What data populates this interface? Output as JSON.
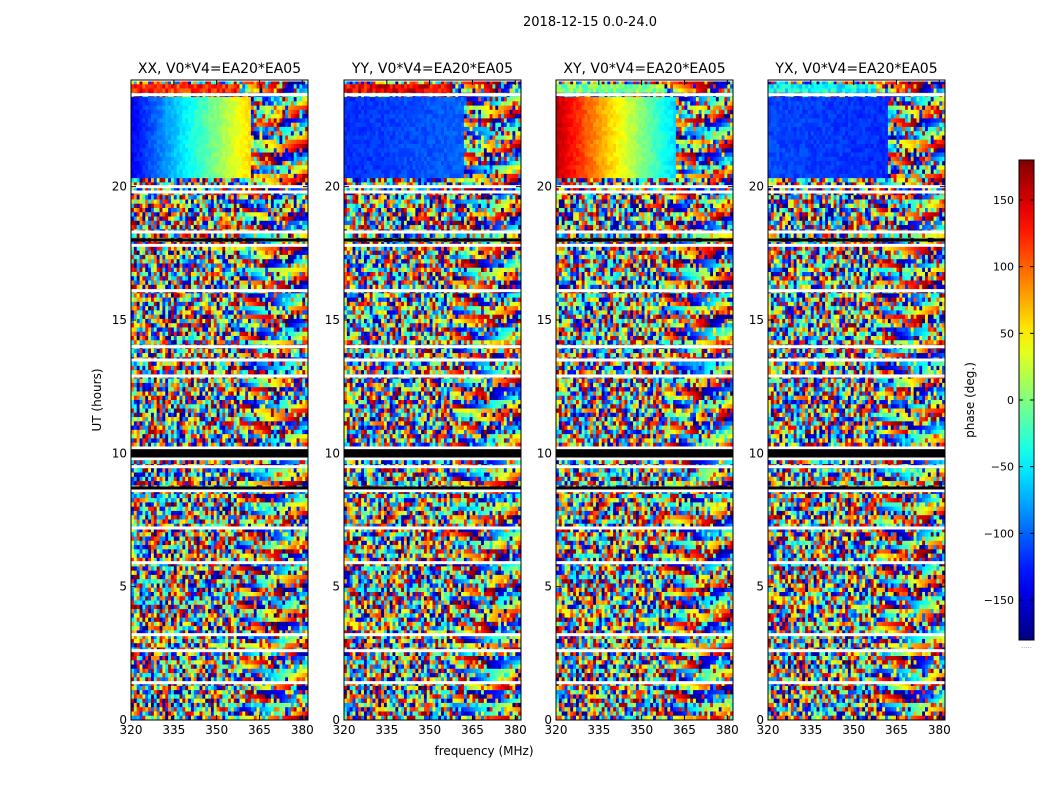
{
  "chart_data": {
    "type": "heatmap",
    "suptitle": "2018-12-15 0.0-24.0",
    "xlabel": "frequency (MHz)",
    "ylabel": "UT (hours)",
    "xlim": [
      320,
      382
    ],
    "ylim": [
      0,
      24
    ],
    "xticks": [
      320,
      335,
      350,
      365,
      380
    ],
    "yticks": [
      0,
      5,
      10,
      15,
      20
    ],
    "panels": [
      {
        "title": "XX, V0*V4=EA20*EA05",
        "smooth_band": {
          "t_start": 20.3,
          "t_end": 23.4,
          "phase_at_320": -140,
          "phase_at_362": 60,
          "noise_after_mhz": 362
        },
        "noise_after_band": {
          "t_start": 23.5,
          "t_end": 23.9,
          "dominant_phase": 120
        }
      },
      {
        "title": "YY, V0*V4=EA20*EA05",
        "smooth_band": {
          "t_start": 20.3,
          "t_end": 23.4,
          "phase_at_320": -120,
          "phase_at_362": -100,
          "noise_after_mhz": 362
        },
        "noise_after_band": {
          "t_start": 23.5,
          "t_end": 23.9,
          "dominant_phase": 140
        }
      },
      {
        "title": "XY, V0*V4=EA20*EA05",
        "smooth_band": {
          "t_start": 20.3,
          "t_end": 23.4,
          "phase_at_320": 160,
          "phase_at_362": -60,
          "noise_after_mhz": 362
        },
        "noise_after_band": {
          "t_start": 23.5,
          "t_end": 23.9,
          "dominant_phase": 0
        }
      },
      {
        "title": "YX, V0*V4=EA20*EA05",
        "smooth_band": {
          "t_start": 20.3,
          "t_end": 23.4,
          "phase_at_320": -110,
          "phase_at_362": -120,
          "noise_after_mhz": 362
        },
        "noise_after_band": {
          "t_start": 23.5,
          "t_end": 23.9,
          "dominant_phase": -40
        }
      }
    ],
    "flagged_rows_hours": [
      1.4,
      2.6,
      3.2,
      5.9,
      7.2,
      8.6,
      9.5,
      9.8,
      10.0,
      10.2,
      12.9,
      13.5,
      14.0,
      16.1,
      17.8,
      18.3,
      19.8,
      20.0,
      23.45,
      24.0
    ],
    "black_rows_hours": [
      8.7,
      9.9,
      10.0,
      10.1,
      18.0
    ],
    "colorbar": {
      "label": "phase (deg.)",
      "range": [
        -180,
        180
      ],
      "ticks": [
        -150,
        -100,
        -50,
        0,
        50,
        100,
        150
      ],
      "tick_labels": [
        "−150",
        "−100",
        "−50",
        "0",
        "50",
        "100",
        "150"
      ],
      "colormap": "jet",
      "footnote": "....."
    }
  }
}
